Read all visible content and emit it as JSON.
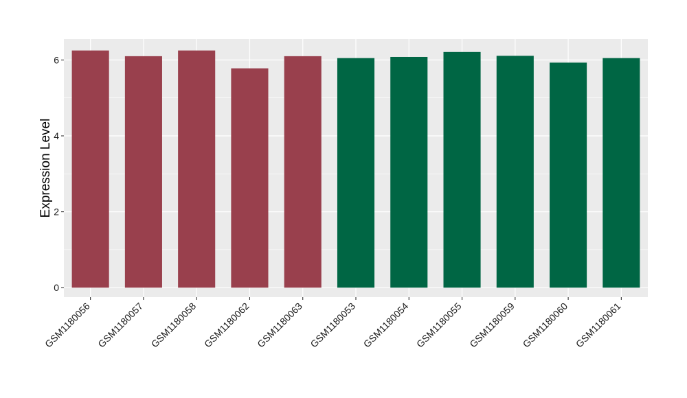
{
  "chart_data": {
    "type": "bar",
    "title": "",
    "xlabel": "",
    "ylabel": "Expression Level",
    "ylim": [
      -0.25,
      6.55
    ],
    "yticks": [
      0,
      2,
      4,
      6
    ],
    "grid": true,
    "legend": "none",
    "categories": [
      "GSM1180056",
      "GSM1180057",
      "GSM1180058",
      "GSM1180062",
      "GSM1180063",
      "GSM1180053",
      "GSM1180054",
      "GSM1180055",
      "GSM1180059",
      "GSM1180060",
      "GSM1180061"
    ],
    "values": [
      6.25,
      6.1,
      6.25,
      5.78,
      6.1,
      6.05,
      6.08,
      6.21,
      6.11,
      5.93,
      6.05
    ],
    "groups": [
      0,
      0,
      0,
      0,
      0,
      1,
      1,
      1,
      1,
      1,
      1
    ],
    "group_colors": [
      "#99404d",
      "#006644"
    ],
    "panel_background": "#ebebeb",
    "grid_color": "#ffffff"
  }
}
